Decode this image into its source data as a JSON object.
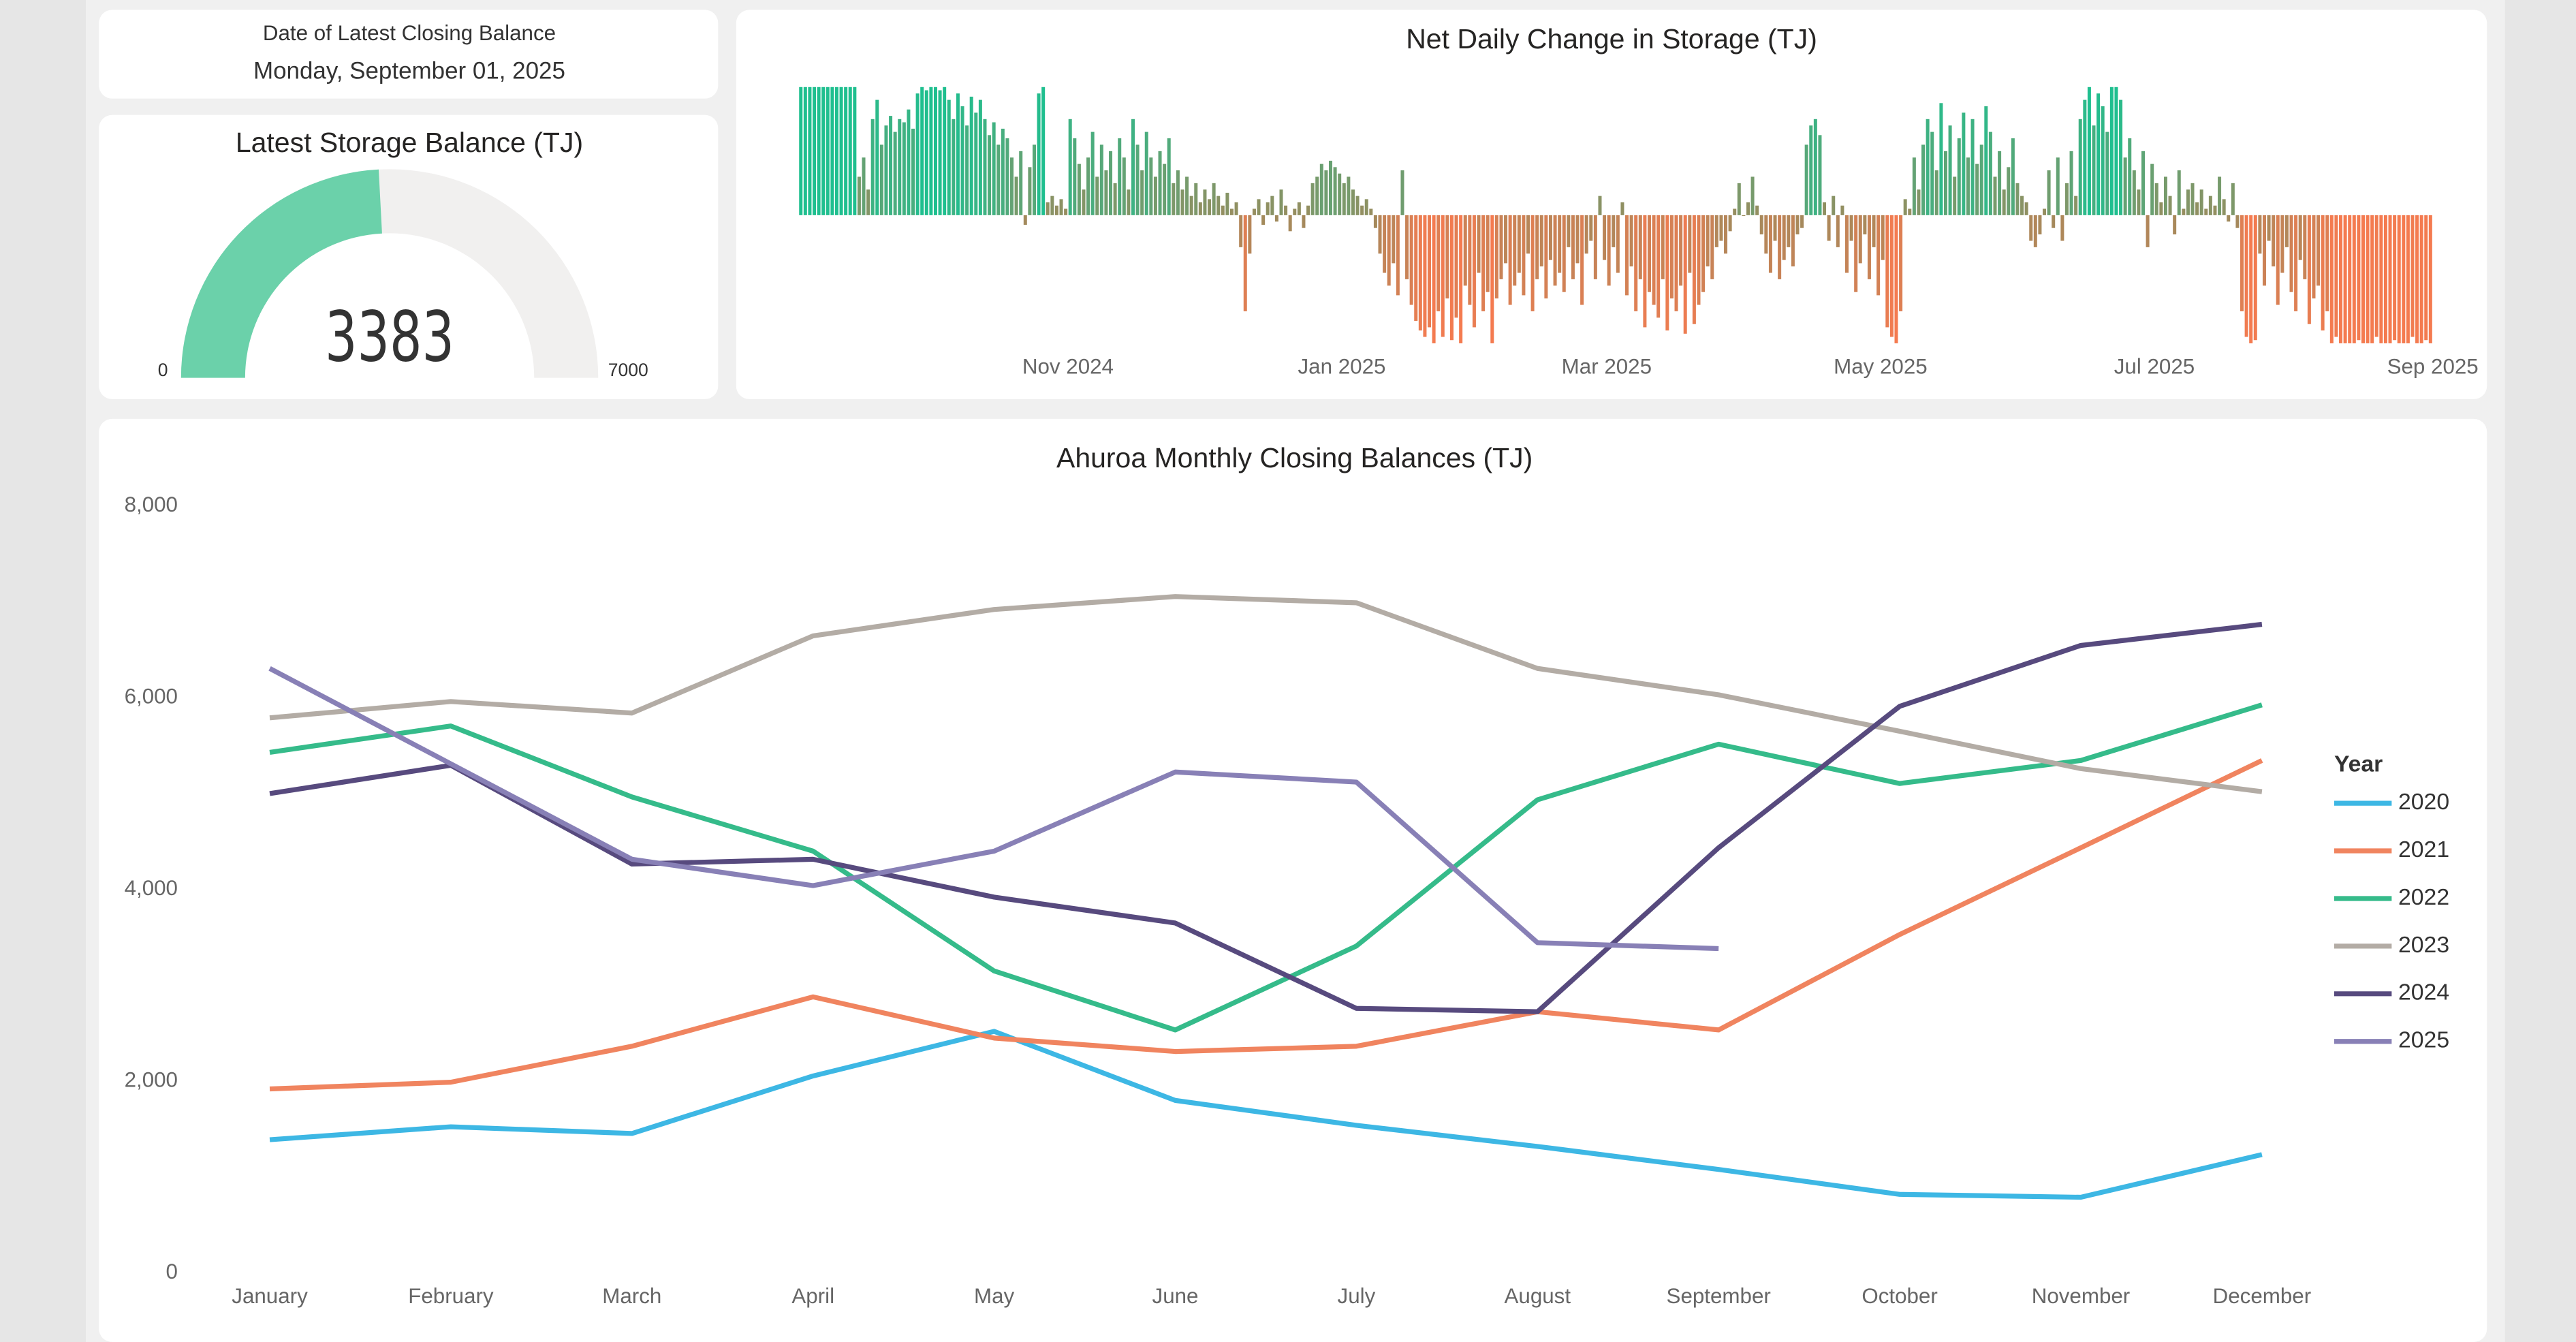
{
  "chart_data": [
    {
      "type": "card",
      "title": "Date of Latest Closing Balance",
      "value": "Monday, September 01, 2025"
    },
    {
      "type": "gauge",
      "title": "Latest Storage Balance (TJ)",
      "value": 3383,
      "min": 0,
      "max": 7000,
      "color": "#6bd1aa",
      "track_color": "#f1f0ef"
    },
    {
      "type": "bar",
      "title": "Net Daily Change in Storage (TJ)",
      "colors": {
        "positive": "#1fbf8f",
        "zero": "#9c8b5d",
        "negative": "#f47b50"
      },
      "xlim": [
        0,
        364
      ],
      "xticks": [
        {
          "value": 60,
          "label": "Nov 2024"
        },
        {
          "value": 121,
          "label": "Jan 2025"
        },
        {
          "value": 180,
          "label": "Mar 2025"
        },
        {
          "value": 241,
          "label": "May 2025"
        },
        {
          "value": 302,
          "label": "Jul 2025"
        },
        {
          "value": 364,
          "label": "Sep 2025"
        }
      ],
      "values": [
        40,
        40,
        40,
        40,
        40,
        40,
        40,
        40,
        40,
        40,
        40,
        40,
        40,
        12,
        18,
        8,
        30,
        36,
        22,
        28,
        31,
        26,
        30,
        29,
        33,
        27,
        38,
        40,
        39,
        40,
        40,
        39,
        40,
        36,
        30,
        38,
        34,
        28,
        37,
        32,
        36,
        30,
        25,
        29,
        22,
        27,
        24,
        18,
        12,
        20,
        -3,
        15,
        22,
        38,
        40,
        4,
        6,
        3,
        5,
        2,
        30,
        24,
        16,
        8,
        18,
        26,
        12,
        22,
        14,
        20,
        10,
        24,
        18,
        8,
        30,
        22,
        14,
        26,
        18,
        12,
        20,
        16,
        24,
        10,
        14,
        8,
        12,
        6,
        10,
        4,
        8,
        5,
        10,
        6,
        3,
        7,
        2,
        4,
        -10,
        -30,
        -12,
        2,
        5,
        -3,
        4,
        6,
        -2,
        8,
        3,
        -5,
        2,
        4,
        -4,
        3,
        10,
        12,
        16,
        14,
        17,
        15,
        13,
        10,
        12,
        8,
        6,
        3,
        5,
        2,
        -4,
        -12,
        -18,
        -22,
        -15,
        -25,
        14,
        -20,
        -28,
        -33,
        -36,
        -38,
        -35,
        -40,
        -30,
        -38,
        -26,
        -39,
        -32,
        -40,
        -22,
        -28,
        -35,
        -18,
        -30,
        -24,
        -40,
        -26,
        -20,
        -15,
        -28,
        -22,
        -18,
        -25,
        -12,
        -30,
        -20,
        -16,
        -26,
        -14,
        -22,
        -18,
        -24,
        -10,
        -20,
        -15,
        -28,
        -12,
        -8,
        -20,
        6,
        -14,
        -22,
        -10,
        -18,
        4,
        -25,
        -16,
        -30,
        -20,
        -35,
        -24,
        -28,
        -32,
        -20,
        -36,
        -26,
        -30,
        -22,
        -37,
        -18,
        -34,
        -28,
        -24,
        -16,
        -20,
        -10,
        -8,
        -12,
        -5,
        2,
        10,
        0,
        4,
        12,
        3,
        -6,
        -12,
        -18,
        -8,
        -20,
        -14,
        -10,
        -16,
        -6,
        -4,
        22,
        28,
        30,
        25,
        4,
        -8,
        6,
        -10,
        3,
        -18,
        -8,
        -24,
        -15,
        -6,
        -20,
        -10,
        -25,
        -14,
        -35,
        -38,
        -40,
        -30,
        5,
        2,
        18,
        8,
        22,
        30,
        26,
        14,
        35,
        20,
        28,
        12,
        24,
        32,
        18,
        30,
        16,
        22,
        34,
        26,
        12,
        20,
        8,
        15,
        24,
        10,
        6,
        4,
        -8,
        -10,
        -6,
        2,
        14,
        -4,
        18,
        -8,
        10,
        20,
        6,
        30,
        36,
        40,
        28,
        38,
        34,
        26,
        40,
        40,
        36,
        18,
        24,
        14,
        8,
        20,
        -10,
        16,
        10,
        4,
        12,
        6,
        -6,
        14,
        2,
        8,
        10,
        4,
        8,
        2,
        6,
        3,
        12,
        5,
        -2,
        10,
        -4,
        -30,
        -38,
        -40,
        -39,
        -12,
        -22,
        -8,
        -16,
        -28,
        -18,
        -10,
        -24,
        -30,
        -14,
        -20,
        -34,
        -26,
        -22,
        -36,
        -30,
        -40,
        -38,
        -40,
        -40,
        -40,
        -40,
        -39,
        -40,
        -40,
        -40,
        -38,
        -40,
        -40,
        -40,
        -39,
        -40,
        -40,
        -40,
        -38,
        -40,
        -40,
        -39,
        -40
      ]
    },
    {
      "type": "line",
      "title": "Ahuroa Monthly Closing Balances (TJ)",
      "categories": [
        "January",
        "February",
        "March",
        "April",
        "May",
        "June",
        "July",
        "August",
        "September",
        "October",
        "November",
        "December"
      ],
      "ylim": [
        0,
        8000
      ],
      "yticks": [
        0,
        {
          "value": 2000,
          "label": "2,000"
        },
        {
          "value": 4000,
          "label": "4,000"
        },
        {
          "value": 6000,
          "label": "6,000"
        },
        {
          "value": 8000,
          "label": "8,000"
        }
      ],
      "legend_title": "Year",
      "legend": "right",
      "series": [
        {
          "name": "2020",
          "color": "#3db7e4",
          "values": [
            1390,
            1525,
            1455,
            2055,
            2520,
            1800,
            1540,
            1320,
            1080,
            820,
            790,
            1235
          ]
        },
        {
          "name": "2021",
          "color": "#f0845f",
          "values": [
            1920,
            1990,
            2365,
            2880,
            2450,
            2310,
            2365,
            2725,
            2535,
            3530,
            4435,
            5345
          ]
        },
        {
          "name": "2022",
          "color": "#35bb8a",
          "values": [
            5430,
            5705,
            4965,
            4400,
            3150,
            2535,
            3410,
            4935,
            5515,
            5105,
            5345,
            5925
          ]
        },
        {
          "name": "2023",
          "color": "#b3aca5",
          "values": [
            5790,
            5960,
            5840,
            6645,
            6920,
            7055,
            6990,
            6305,
            6030,
            5650,
            5260,
            5020
          ]
        },
        {
          "name": "2024",
          "color": "#574a7e",
          "values": [
            5000,
            5295,
            4265,
            4315,
            3920,
            3650,
            2760,
            2725,
            4435,
            5910,
            6545,
            6765
          ]
        },
        {
          "name": "2025",
          "color": "#8880b6",
          "values": [
            6305,
            5310,
            4315,
            4040,
            4400,
            5225,
            5120,
            3445,
            3383,
            null,
            null,
            null
          ]
        }
      ]
    }
  ]
}
